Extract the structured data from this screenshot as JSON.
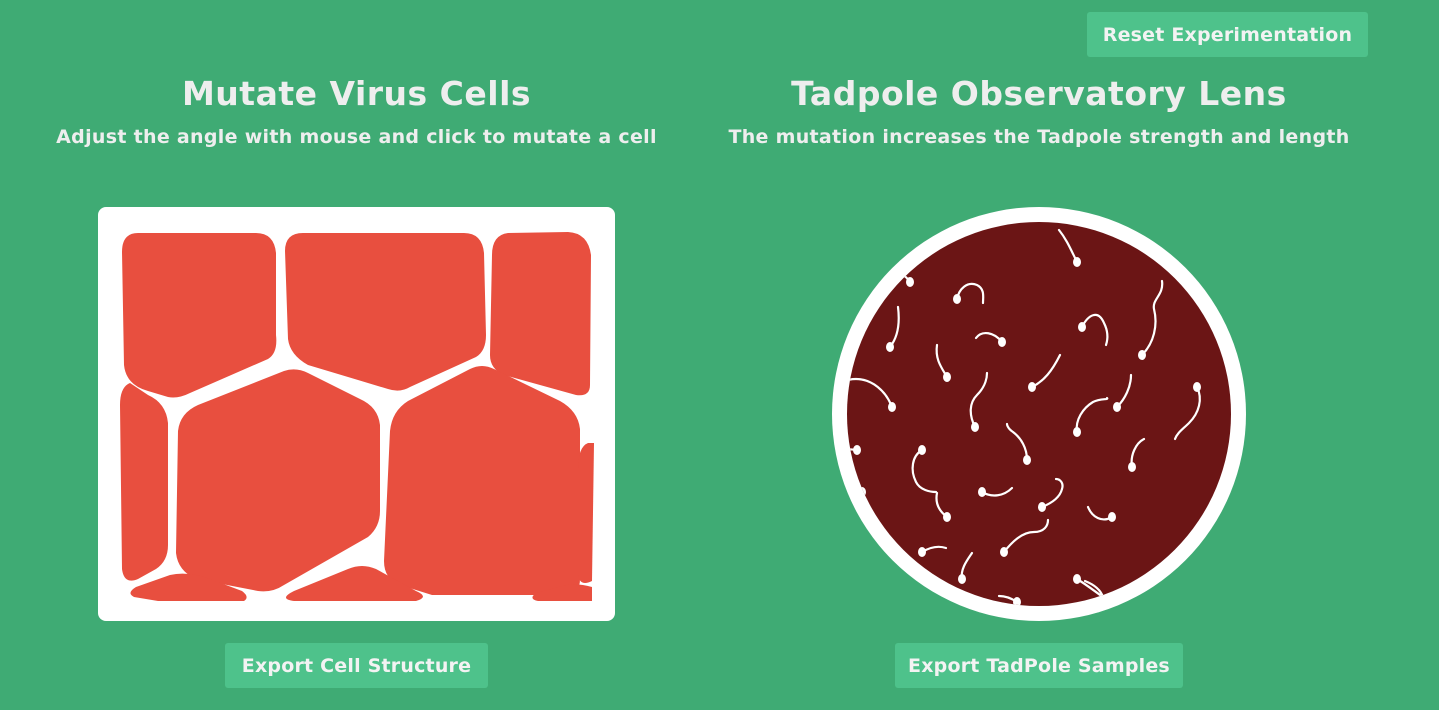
{
  "header": {
    "reset_label": "Reset Experimentation"
  },
  "left_panel": {
    "title": "Mutate Virus Cells",
    "subtitle": "Adjust the angle with mouse and click to mutate a cell",
    "export_label": "Export Cell Structure"
  },
  "right_panel": {
    "title": "Tadpole Observatory Lens",
    "subtitle": "The mutation increases the Tadpole strength and length",
    "export_label": "Export TadPole Samples"
  },
  "colors": {
    "background": "#3fab74",
    "button": "#4ec28b",
    "cell_fill": "#e84f3f",
    "lens_fill": "#6b1515",
    "tadpole": "#ffffff"
  }
}
